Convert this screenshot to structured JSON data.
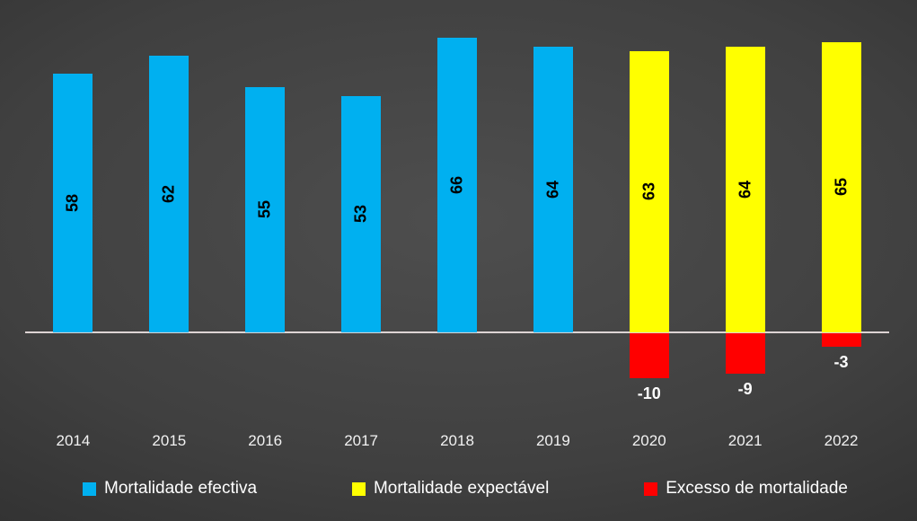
{
  "chart_data": {
    "type": "bar",
    "title": "",
    "xlabel": "",
    "ylabel": "",
    "categories": [
      "2014",
      "2015",
      "2016",
      "2017",
      "2018",
      "2019",
      "2020",
      "2021",
      "2022"
    ],
    "series": [
      {
        "name": "Mortalidade efectiva",
        "color": "#00B0F0",
        "values": [
          58,
          62,
          55,
          53,
          66,
          64,
          null,
          null,
          null
        ]
      },
      {
        "name": "Mortalidade expectável",
        "color": "#FFFF00",
        "values": [
          null,
          null,
          null,
          null,
          null,
          null,
          63,
          64,
          65
        ]
      },
      {
        "name": "Excesso de mortalidade",
        "color": "#FF0000",
        "values": [
          null,
          null,
          null,
          null,
          null,
          null,
          -10,
          -9,
          -3
        ]
      }
    ],
    "baseline": 0,
    "ylim": [
      -12,
      70
    ],
    "grid": false,
    "legend_position": "bottom",
    "value_label_style": {
      "positive_rotation_deg": -90,
      "positive_color": "#000000",
      "negative_color": "#FFFFFF"
    }
  },
  "colors": {
    "background_center": "#4e4e4e",
    "background_edge": "#1c1c1c",
    "axis_line": "#ddd4d4",
    "category_label": "#f2f2f2",
    "legend_text": "#ffffff"
  }
}
